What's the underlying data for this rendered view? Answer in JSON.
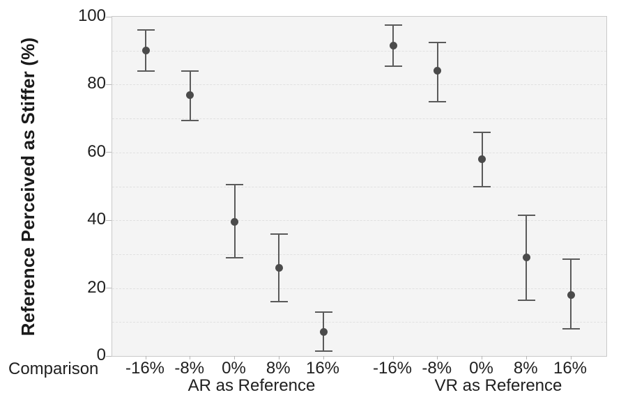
{
  "chart_data": {
    "type": "scatter",
    "subtype": "point-with-error-bars",
    "title": "",
    "ylabel": "Reference Perceived as Stiffer (%)",
    "xlabel": "Comparison",
    "ylim": [
      0,
      100
    ],
    "yticks": [
      0,
      20,
      40,
      60,
      80,
      100
    ],
    "gridlines_every": 10,
    "grid_style": "dashed",
    "legend_position": "none",
    "categories": [
      "-16%",
      "-8%",
      "0%",
      "8%",
      "16%"
    ],
    "groups": [
      {
        "label": "AR as Reference",
        "means": [
          90,
          77,
          39.5,
          26,
          7
        ],
        "ci_low": [
          84,
          69.5,
          29,
          16,
          1.5
        ],
        "ci_high": [
          96,
          84,
          50.5,
          36,
          13
        ]
      },
      {
        "label": "VR as Reference",
        "means": [
          91.5,
          84,
          58,
          29,
          18
        ],
        "ci_low": [
          85.5,
          75,
          50,
          16.5,
          8
        ],
        "ci_high": [
          97.5,
          92.5,
          66,
          41.5,
          28.5
        ]
      }
    ],
    "colors": {
      "marker": "#4b4b4b",
      "error_bar": "#5a5a5a",
      "plot_background": "#f4f4f4",
      "grid": "#e0e0e0",
      "border": "#c9c9c9",
      "text": "#1f1f1f"
    }
  }
}
